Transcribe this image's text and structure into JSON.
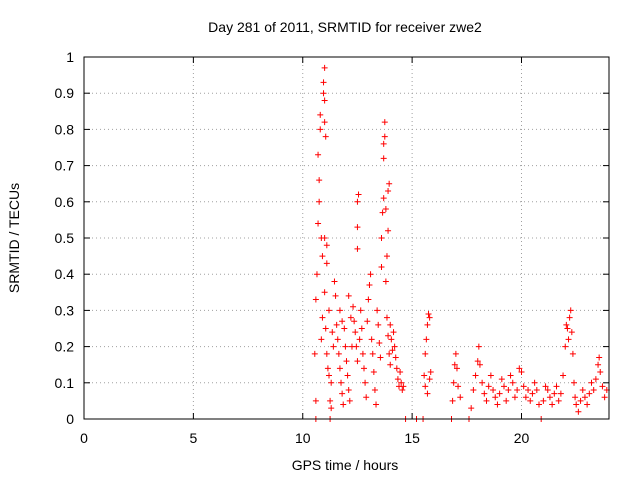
{
  "chart_data": {
    "type": "scatter",
    "title": "Day 281 of 2011, SRMTID for receiver zwe2",
    "xlabel": "GPS time / hours",
    "ylabel": "SRMTID / TECUs",
    "xlim": [
      0,
      24
    ],
    "ylim": [
      0,
      1
    ],
    "x_ticks": [
      0,
      5,
      10,
      15,
      20
    ],
    "x_tick_labels": [
      "0",
      "5",
      "10",
      "15",
      "20"
    ],
    "y_ticks": [
      0,
      0.1,
      0.2,
      0.3,
      0.4,
      0.5,
      0.6,
      0.7,
      0.8,
      0.9,
      1
    ],
    "y_tick_labels": [
      "0",
      "0.1",
      "0.2",
      "0.3",
      "0.4",
      "0.5",
      "0.6",
      "0.7",
      "0.8",
      "0.9",
      "1"
    ],
    "grid": true,
    "marker": "+",
    "marker_color": "#ff0000",
    "series": [
      {
        "name": "zwe2",
        "points": [
          [
            10.6,
            0.0
          ],
          [
            10.6,
            0.05
          ],
          [
            10.55,
            0.18
          ],
          [
            10.6,
            0.33
          ],
          [
            10.65,
            0.4
          ],
          [
            10.7,
            0.54
          ],
          [
            10.75,
            0.6
          ],
          [
            10.7,
            0.73
          ],
          [
            10.8,
            0.84
          ],
          [
            10.8,
            0.8
          ],
          [
            10.75,
            0.66
          ],
          [
            10.85,
            0.5
          ],
          [
            10.9,
            0.45
          ],
          [
            10.95,
            0.93
          ],
          [
            11.0,
            0.97
          ],
          [
            11.0,
            0.88
          ],
          [
            10.95,
            0.9
          ],
          [
            11.0,
            0.82
          ],
          [
            11.05,
            0.78
          ],
          [
            10.9,
            0.28
          ],
          [
            10.85,
            0.22
          ],
          [
            11.0,
            0.35
          ],
          [
            11.05,
            0.25
          ],
          [
            11.1,
            0.43
          ],
          [
            11.1,
            0.48
          ],
          [
            11.0,
            0.5
          ],
          [
            11.1,
            0.18
          ],
          [
            11.15,
            0.14
          ],
          [
            11.2,
            0.12
          ],
          [
            11.25,
            0.05
          ],
          [
            11.3,
            0.03
          ],
          [
            11.25,
            0.0
          ],
          [
            11.3,
            0.1
          ],
          [
            11.2,
            0.3
          ],
          [
            11.35,
            0.24
          ],
          [
            11.4,
            0.2
          ],
          [
            11.45,
            0.38
          ],
          [
            11.5,
            0.34
          ],
          [
            11.55,
            0.26
          ],
          [
            11.6,
            0.22
          ],
          [
            11.65,
            0.18
          ],
          [
            11.7,
            0.14
          ],
          [
            11.75,
            0.1
          ],
          [
            11.8,
            0.07
          ],
          [
            11.85,
            0.04
          ],
          [
            11.7,
            0.3
          ],
          [
            11.8,
            0.27
          ],
          [
            11.9,
            0.25
          ],
          [
            11.95,
            0.2
          ],
          [
            12.0,
            0.16
          ],
          [
            12.05,
            0.12
          ],
          [
            12.1,
            0.08
          ],
          [
            12.15,
            0.05
          ],
          [
            12.1,
            0.34
          ],
          [
            12.2,
            0.28
          ],
          [
            12.25,
            0.2
          ],
          [
            12.3,
            0.31
          ],
          [
            12.35,
            0.27
          ],
          [
            12.4,
            0.24
          ],
          [
            12.45,
            0.2
          ],
          [
            12.5,
            0.16
          ],
          [
            12.5,
            0.47
          ],
          [
            12.5,
            0.53
          ],
          [
            12.5,
            0.6
          ],
          [
            12.55,
            0.62
          ],
          [
            12.6,
            0.22
          ],
          [
            12.65,
            0.3
          ],
          [
            12.7,
            0.25
          ],
          [
            12.75,
            0.18
          ],
          [
            12.8,
            0.14
          ],
          [
            12.85,
            0.1
          ],
          [
            12.9,
            0.06
          ],
          [
            12.95,
            0.27
          ],
          [
            13.0,
            0.33
          ],
          [
            13.05,
            0.37
          ],
          [
            13.1,
            0.4
          ],
          [
            13.15,
            0.22
          ],
          [
            13.2,
            0.18
          ],
          [
            13.25,
            0.13
          ],
          [
            13.3,
            0.08
          ],
          [
            13.35,
            0.04
          ],
          [
            13.4,
            0.3
          ],
          [
            13.45,
            0.26
          ],
          [
            13.5,
            0.21
          ],
          [
            13.55,
            0.17
          ],
          [
            13.6,
            0.42
          ],
          [
            13.6,
            0.5
          ],
          [
            13.65,
            0.57
          ],
          [
            13.7,
            0.61
          ],
          [
            13.7,
            0.72
          ],
          [
            13.7,
            0.76
          ],
          [
            13.75,
            0.82
          ],
          [
            13.75,
            0.78
          ],
          [
            13.8,
            0.58
          ],
          [
            13.8,
            0.38
          ],
          [
            13.85,
            0.45
          ],
          [
            13.9,
            0.63
          ],
          [
            13.95,
            0.65
          ],
          [
            13.9,
            0.52
          ],
          [
            13.85,
            0.28
          ],
          [
            13.9,
            0.23
          ],
          [
            13.95,
            0.18
          ],
          [
            14.0,
            0.15
          ],
          [
            14.0,
            0.26
          ],
          [
            14.05,
            0.22
          ],
          [
            14.1,
            0.19
          ],
          [
            14.15,
            0.24
          ],
          [
            14.2,
            0.2
          ],
          [
            14.25,
            0.17
          ],
          [
            14.3,
            0.14
          ],
          [
            14.35,
            0.11
          ],
          [
            14.4,
            0.09
          ],
          [
            14.45,
            0.13
          ],
          [
            14.5,
            0.1
          ],
          [
            14.55,
            0.08
          ],
          [
            14.6,
            0.09
          ],
          [
            14.7,
            0.0
          ],
          [
            15.2,
            0.0
          ],
          [
            15.5,
            0.0
          ],
          [
            15.55,
            0.12
          ],
          [
            15.6,
            0.18
          ],
          [
            15.65,
            0.22
          ],
          [
            15.7,
            0.26
          ],
          [
            15.75,
            0.29
          ],
          [
            15.8,
            0.28
          ],
          [
            15.6,
            0.09
          ],
          [
            15.7,
            0.07
          ],
          [
            15.8,
            0.11
          ],
          [
            15.85,
            0.13
          ],
          [
            16.8,
            0.0
          ],
          [
            16.85,
            0.05
          ],
          [
            16.9,
            0.1
          ],
          [
            16.95,
            0.15
          ],
          [
            17.0,
            0.18
          ],
          [
            17.05,
            0.14
          ],
          [
            17.1,
            0.09
          ],
          [
            17.2,
            0.06
          ],
          [
            17.6,
            0.0
          ],
          [
            17.7,
            0.03
          ],
          [
            17.8,
            0.08
          ],
          [
            17.9,
            0.12
          ],
          [
            18.0,
            0.16
          ],
          [
            18.05,
            0.2
          ],
          [
            18.1,
            0.15
          ],
          [
            18.2,
            0.1
          ],
          [
            18.3,
            0.07
          ],
          [
            18.4,
            0.05
          ],
          [
            18.5,
            0.09
          ],
          [
            18.6,
            0.12
          ],
          [
            18.7,
            0.08
          ],
          [
            18.8,
            0.06
          ],
          [
            18.9,
            0.04
          ],
          [
            19.0,
            0.07
          ],
          [
            19.1,
            0.11
          ],
          [
            19.2,
            0.09
          ],
          [
            19.3,
            0.05
          ],
          [
            19.4,
            0.08
          ],
          [
            19.5,
            0.12
          ],
          [
            19.6,
            0.1
          ],
          [
            19.7,
            0.06
          ],
          [
            19.8,
            0.08
          ],
          [
            19.9,
            0.14
          ],
          [
            20.0,
            0.13
          ],
          [
            20.1,
            0.09
          ],
          [
            20.2,
            0.06
          ],
          [
            20.3,
            0.08
          ],
          [
            20.4,
            0.05
          ],
          [
            20.5,
            0.07
          ],
          [
            20.6,
            0.1
          ],
          [
            20.7,
            0.08
          ],
          [
            20.8,
            0.04
          ],
          [
            20.9,
            0.0
          ],
          [
            21.0,
            0.05
          ],
          [
            21.1,
            0.09
          ],
          [
            21.2,
            0.08
          ],
          [
            21.3,
            0.06
          ],
          [
            21.4,
            0.04
          ],
          [
            21.5,
            0.07
          ],
          [
            21.6,
            0.09
          ],
          [
            21.7,
            0.05
          ],
          [
            21.8,
            0.07
          ],
          [
            21.9,
            0.12
          ],
          [
            22.0,
            0.2
          ],
          [
            22.05,
            0.26
          ],
          [
            22.1,
            0.25
          ],
          [
            22.15,
            0.22
          ],
          [
            22.2,
            0.28
          ],
          [
            22.25,
            0.3
          ],
          [
            22.3,
            0.24
          ],
          [
            22.35,
            0.18
          ],
          [
            22.4,
            0.1
          ],
          [
            22.45,
            0.06
          ],
          [
            22.5,
            0.04
          ],
          [
            22.6,
            0.02
          ],
          [
            22.7,
            0.05
          ],
          [
            22.8,
            0.08
          ],
          [
            22.9,
            0.06
          ],
          [
            23.0,
            0.04
          ],
          [
            23.1,
            0.07
          ],
          [
            23.2,
            0.1
          ],
          [
            23.3,
            0.08
          ],
          [
            23.4,
            0.11
          ],
          [
            23.5,
            0.15
          ],
          [
            23.55,
            0.17
          ],
          [
            23.6,
            0.13
          ],
          [
            23.7,
            0.09
          ],
          [
            23.8,
            0.06
          ],
          [
            23.9,
            0.08
          ]
        ]
      }
    ]
  }
}
